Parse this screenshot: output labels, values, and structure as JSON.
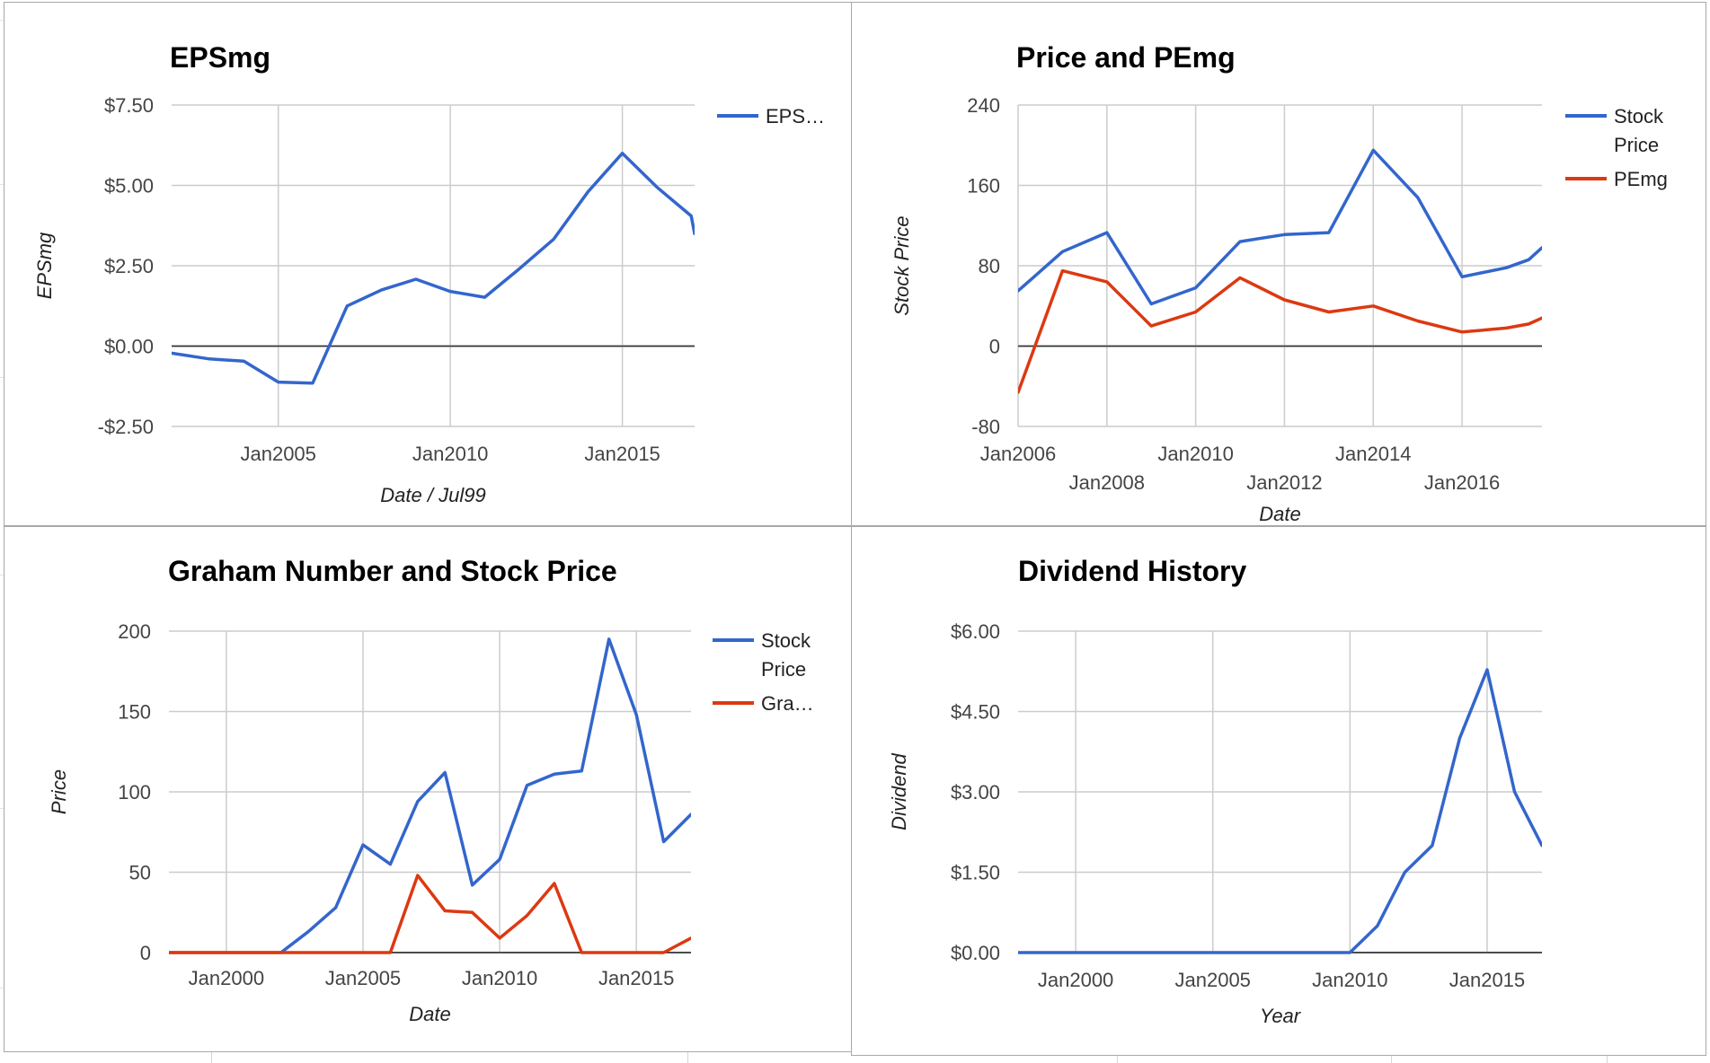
{
  "colors": {
    "blue": "#3366cc",
    "red": "#dc3912",
    "grid": "#cccccc",
    "zero": "#333333",
    "border": "#a8a8a8"
  },
  "chart_data": [
    {
      "id": "epsmg",
      "type": "line",
      "title": "EPSmg",
      "xlabel": "Date / Jul99",
      "ylabel": "EPSmg",
      "ylim": [
        -2.5,
        7.5
      ],
      "yticks": [
        -2.5,
        0,
        2.5,
        5,
        7.5
      ],
      "ytick_labels": [
        "-$2.50",
        "$0.00",
        "$2.50",
        "$5.00",
        "$7.50"
      ],
      "xlim": [
        2001.9,
        2017.1
      ],
      "xticks": [
        2005,
        2010,
        2015
      ],
      "xtick_labels": [
        "Jan2005",
        "Jan2010",
        "Jan2015"
      ],
      "grid": true,
      "legend_position": "right",
      "series": [
        {
          "name": "EPS…",
          "color": "#3366cc",
          "x": [
            2001.9,
            2003,
            2004,
            2005,
            2006,
            2007,
            2008,
            2009,
            2010,
            2011,
            2012,
            2013,
            2014,
            2015,
            2016,
            2017,
            2017.1
          ],
          "y": [
            -0.22,
            -0.4,
            -0.47,
            -1.12,
            -1.15,
            1.25,
            1.75,
            2.08,
            1.7,
            1.52,
            2.4,
            3.32,
            4.8,
            6.0,
            4.95,
            4.05,
            3.5
          ]
        }
      ]
    },
    {
      "id": "price-pemg",
      "type": "line",
      "title": "Price and PEmg",
      "xlabel": "Date",
      "ylabel": "Stock Price",
      "ylim": [
        -80,
        240
      ],
      "yticks": [
        -80,
        0,
        80,
        160,
        240
      ],
      "ytick_labels": [
        "-80",
        "0",
        "80",
        "160",
        "240"
      ],
      "xlim": [
        2006,
        2017.8
      ],
      "xticks": [
        2006,
        2008,
        2010,
        2012,
        2014,
        2016
      ],
      "xtick_labels": [
        "Jan2006",
        "Jan2008",
        "Jan2010",
        "Jan2012",
        "Jan2014",
        "Jan2016"
      ],
      "grid": true,
      "legend_position": "right",
      "series": [
        {
          "name": "Stock Price",
          "color": "#3366cc",
          "x": [
            2006,
            2007,
            2008,
            2009,
            2010,
            2011,
            2012,
            2013,
            2014,
            2015,
            2016,
            2017,
            2017.5,
            2017.8
          ],
          "y": [
            55,
            94,
            113,
            42,
            58,
            104,
            111,
            113,
            195,
            148,
            69,
            78,
            86,
            98
          ]
        },
        {
          "name": "PEmg",
          "color": "#dc3912",
          "x": [
            2006,
            2007,
            2008,
            2009,
            2010,
            2011,
            2012,
            2013,
            2014,
            2015,
            2016,
            2017,
            2017.5,
            2017.8
          ],
          "y": [
            -46,
            75,
            64,
            20,
            34,
            68,
            46,
            34,
            40,
            25,
            14,
            18,
            22,
            28
          ]
        }
      ]
    },
    {
      "id": "graham",
      "type": "line",
      "title": "Graham Number and Stock Price",
      "xlabel": "Date",
      "ylabel": "Price",
      "ylim": [
        0,
        200
      ],
      "yticks": [
        0,
        50,
        100,
        150,
        200
      ],
      "ytick_labels": [
        "0",
        "50",
        "100",
        "150",
        "200"
      ],
      "xlim": [
        1997.9,
        2017
      ],
      "xticks": [
        2000,
        2005,
        2010,
        2015
      ],
      "xtick_labels": [
        "Jan2000",
        "Jan2005",
        "Jan2010",
        "Jan2015"
      ],
      "grid": true,
      "legend_position": "right",
      "series": [
        {
          "name": "Stock Price",
          "color": "#3366cc",
          "x": [
            1997.9,
            1999,
            2000,
            2001,
            2002,
            2003,
            2004,
            2005,
            2006,
            2007,
            2008,
            2009,
            2010,
            2011,
            2012,
            2013,
            2014,
            2015,
            2016,
            2017
          ],
          "y": [
            0,
            0,
            0,
            0,
            0,
            13,
            28,
            67,
            55,
            94,
            112,
            42,
            58,
            104,
            111,
            113,
            195,
            148,
            69,
            86
          ]
        },
        {
          "name": "Gra…",
          "color": "#dc3912",
          "x": [
            1997.9,
            1999,
            2000,
            2001,
            2002,
            2003,
            2004,
            2005,
            2006,
            2007,
            2008,
            2009,
            2010,
            2011,
            2012,
            2013,
            2014,
            2015,
            2016,
            2017
          ],
          "y": [
            0,
            0,
            0,
            0,
            0,
            0,
            0,
            0,
            0,
            48,
            26,
            25,
            9,
            23,
            43,
            0,
            0,
            0,
            0,
            9
          ]
        }
      ]
    },
    {
      "id": "dividend",
      "type": "line",
      "title": "Dividend History",
      "xlabel": "Year",
      "ylabel": "Dividend",
      "ylim": [
        0,
        6
      ],
      "yticks": [
        0,
        1.5,
        3,
        4.5,
        6
      ],
      "ytick_labels": [
        "$0.00",
        "$1.50",
        "$3.00",
        "$4.50",
        "$6.00"
      ],
      "xlim": [
        1997.9,
        2017
      ],
      "xticks": [
        2000,
        2005,
        2010,
        2015
      ],
      "xtick_labels": [
        "Jan2000",
        "Jan2005",
        "Jan2010",
        "Jan2015"
      ],
      "grid": true,
      "legend_position": "none",
      "series": [
        {
          "color": "#3366cc",
          "x": [
            1997.9,
            2000,
            2005,
            2010,
            2011,
            2012,
            2013,
            2014,
            2015,
            2016,
            2017
          ],
          "y": [
            0,
            0,
            0,
            0,
            0.5,
            1.5,
            2.0,
            4.0,
            5.28,
            3.0,
            2.0
          ]
        }
      ]
    }
  ]
}
